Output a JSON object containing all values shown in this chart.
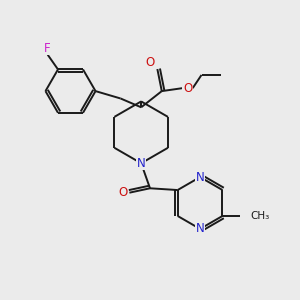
{
  "bg_color": "#ebebeb",
  "bond_color": "#1a1a1a",
  "N_color": "#2222cc",
  "O_color": "#cc1111",
  "F_color": "#cc22cc",
  "figsize": [
    3.0,
    3.0
  ],
  "dpi": 100,
  "lw": 1.4,
  "fs": 8.5,
  "xlim": [
    0,
    10
  ],
  "ylim": [
    0,
    10
  ]
}
